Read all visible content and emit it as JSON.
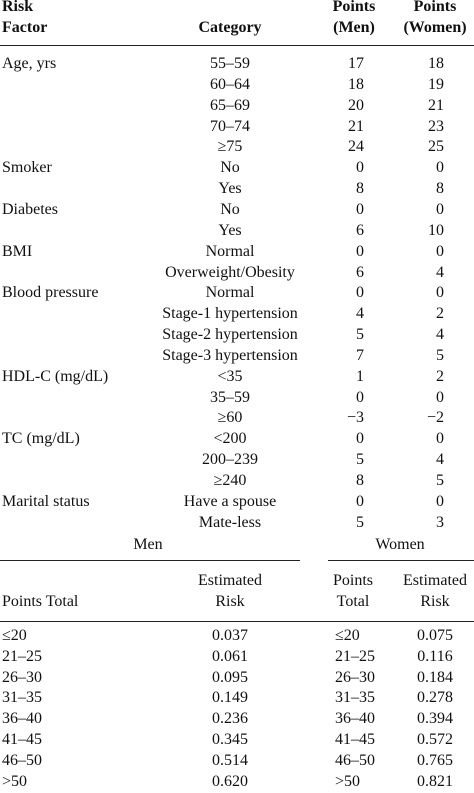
{
  "risk_table": {
    "headers": {
      "risk_factor": [
        "Risk",
        "Factor"
      ],
      "category": "Category",
      "points_men": [
        "Points",
        "(Men)"
      ],
      "points_women": [
        "Points",
        "(Women)"
      ]
    },
    "rows": [
      {
        "factor": "Age, yrs",
        "category": "55–59",
        "men": "17",
        "women": "18"
      },
      {
        "factor": "",
        "category": "60–64",
        "men": "18",
        "women": "19"
      },
      {
        "factor": "",
        "category": "65–69",
        "men": "20",
        "women": "21"
      },
      {
        "factor": "",
        "category": "70–74",
        "men": "21",
        "women": "23"
      },
      {
        "factor": "",
        "category": "≥75",
        "men": "24",
        "women": "25"
      },
      {
        "factor": "Smoker",
        "category": "No",
        "men": "0",
        "women": "0"
      },
      {
        "factor": "",
        "category": "Yes",
        "men": "8",
        "women": "8"
      },
      {
        "factor": "Diabetes",
        "category": "No",
        "men": "0",
        "women": "0"
      },
      {
        "factor": "",
        "category": "Yes",
        "men": "6",
        "women": "10"
      },
      {
        "factor": "BMI",
        "category": "Normal",
        "men": "0",
        "women": "0"
      },
      {
        "factor": "",
        "category": "Overweight/Obesity",
        "men": "6",
        "women": "4"
      },
      {
        "factor": "Blood pressure",
        "category": "Normal",
        "men": "0",
        "women": "0"
      },
      {
        "factor": "",
        "category": "Stage-1 hypertension",
        "men": "4",
        "women": "2"
      },
      {
        "factor": "",
        "category": "Stage-2 hypertension",
        "men": "5",
        "women": "4"
      },
      {
        "factor": "",
        "category": "Stage-3 hypertension",
        "men": "7",
        "women": "5"
      },
      {
        "factor": "HDL-C (mg/dL)",
        "category": "<35",
        "men": "1",
        "women": "2"
      },
      {
        "factor": "",
        "category": "35–59",
        "men": "0",
        "women": "0"
      },
      {
        "factor": "",
        "category": "≥60",
        "men": "−3",
        "women": "−2"
      },
      {
        "factor": "TC (mg/dL)",
        "category": "<200",
        "men": "0",
        "women": "0"
      },
      {
        "factor": "",
        "category": "200–239",
        "men": "5",
        "women": "4"
      },
      {
        "factor": "",
        "category": "≥240",
        "men": "8",
        "women": "5"
      },
      {
        "factor": "Marital status",
        "category": "Have a spouse",
        "men": "0",
        "women": "0"
      },
      {
        "factor": "",
        "category": "Mate-less",
        "men": "5",
        "women": "3"
      }
    ]
  },
  "estimate_table": {
    "group_men": "Men",
    "group_women": "Women",
    "headers": {
      "men_points": "Points Total",
      "men_risk": [
        "Estimated",
        "Risk"
      ],
      "women_points": [
        "Points",
        "Total"
      ],
      "women_risk": [
        "Estimated",
        "Risk"
      ]
    },
    "rows": [
      {
        "men_points": "≤20",
        "men_risk": "0.037",
        "women_points": "≤20",
        "women_risk": "0.075"
      },
      {
        "men_points": "21–25",
        "men_risk": "0.061",
        "women_points": "21–25",
        "women_risk": "0.116"
      },
      {
        "men_points": "26–30",
        "men_risk": "0.095",
        "women_points": "26–30",
        "women_risk": "0.184"
      },
      {
        "men_points": "31–35",
        "men_risk": "0.149",
        "women_points": "31–35",
        "women_risk": "0.278"
      },
      {
        "men_points": "36–40",
        "men_risk": "0.236",
        "women_points": "36–40",
        "women_risk": "0.394"
      },
      {
        "men_points": "41–45",
        "men_risk": "0.345",
        "women_points": "41–45",
        "women_risk": "0.572"
      },
      {
        "men_points": "46–50",
        "men_risk": "0.514",
        "women_points": "46–50",
        "women_risk": "0.765"
      },
      {
        "men_points": ">50",
        "men_risk": "0.620",
        "women_points": ">50",
        "women_risk": "0.821"
      }
    ]
  }
}
